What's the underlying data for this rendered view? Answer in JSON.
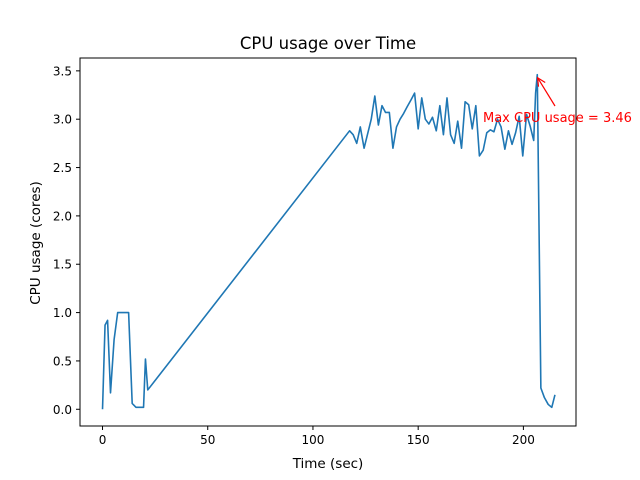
{
  "chart_data": {
    "type": "line",
    "title": "CPU usage over Time",
    "xlabel": "Time (sec)",
    "ylabel": "CPU usage (cores)",
    "xlim": [
      -10.7,
      225.0
    ],
    "ylim": [
      -0.173,
      3.633
    ],
    "xticks": [
      0,
      50,
      100,
      150,
      200
    ],
    "yticks": [
      0.0,
      0.5,
      1.0,
      1.5,
      2.0,
      2.5,
      3.0,
      3.5
    ],
    "xtick_labels": [
      "0",
      "50",
      "100",
      "150",
      "200"
    ],
    "ytick_labels": [
      "0.0",
      "0.5",
      "1.0",
      "1.5",
      "2.0",
      "2.5",
      "3.0",
      "3.5"
    ],
    "grid": false,
    "line_color": "#1f77b4",
    "annotation_color": "#ff0000",
    "series": [
      {
        "name": "",
        "x": [
          0,
          1.2,
          2.4,
          3.8,
          5.5,
          7.2,
          9.0,
          10.7,
          12.4,
          14.1,
          15.9,
          17.6,
          19.5,
          20.4,
          21.5,
          117.4,
          119.1,
          120.8,
          122.5,
          124.3,
          126.0,
          127.7,
          129.4,
          131.1,
          132.8,
          134.5,
          136.3,
          138.0,
          139.7,
          141.4,
          143.1,
          144.8,
          146.6,
          148.3,
          150.0,
          151.7,
          153.4,
          155.1,
          156.8,
          158.6,
          160.3,
          162.0,
          163.7,
          165.4,
          167.1,
          168.8,
          170.6,
          172.3,
          174.0,
          175.7,
          177.4,
          179.1,
          180.9,
          182.6,
          184.3,
          186.0,
          187.7,
          189.4,
          191.2,
          192.9,
          194.6,
          196.3,
          198.0,
          199.7,
          201.5,
          203.2,
          204.9,
          205.8,
          206.6,
          208.3,
          210.0,
          211.8,
          213.5,
          215.0
        ],
        "y": [
          0.0,
          0.87,
          0.92,
          0.17,
          0.72,
          1.0,
          1.0,
          1.0,
          1.0,
          0.06,
          0.02,
          0.02,
          0.02,
          0.52,
          0.2,
          2.88,
          2.84,
          2.75,
          2.92,
          2.7,
          2.85,
          3.0,
          3.24,
          2.94,
          3.14,
          3.07,
          3.07,
          2.7,
          2.92,
          3.0,
          3.06,
          3.13,
          3.2,
          3.27,
          2.9,
          3.22,
          3.0,
          2.95,
          3.02,
          2.88,
          3.14,
          2.84,
          3.22,
          2.84,
          2.75,
          2.98,
          2.7,
          3.18,
          3.15,
          2.9,
          3.14,
          2.62,
          2.68,
          2.86,
          2.89,
          2.87,
          3.0,
          2.92,
          2.69,
          2.88,
          2.74,
          2.86,
          3.03,
          2.62,
          3.05,
          2.93,
          2.78,
          3.27,
          3.46,
          0.22,
          0.12,
          0.05,
          0.02,
          0.15
        ]
      }
    ],
    "annotation": {
      "text": "Max CPU usage = 3.46",
      "point_x": 205.8,
      "point_y": 3.46
    }
  }
}
